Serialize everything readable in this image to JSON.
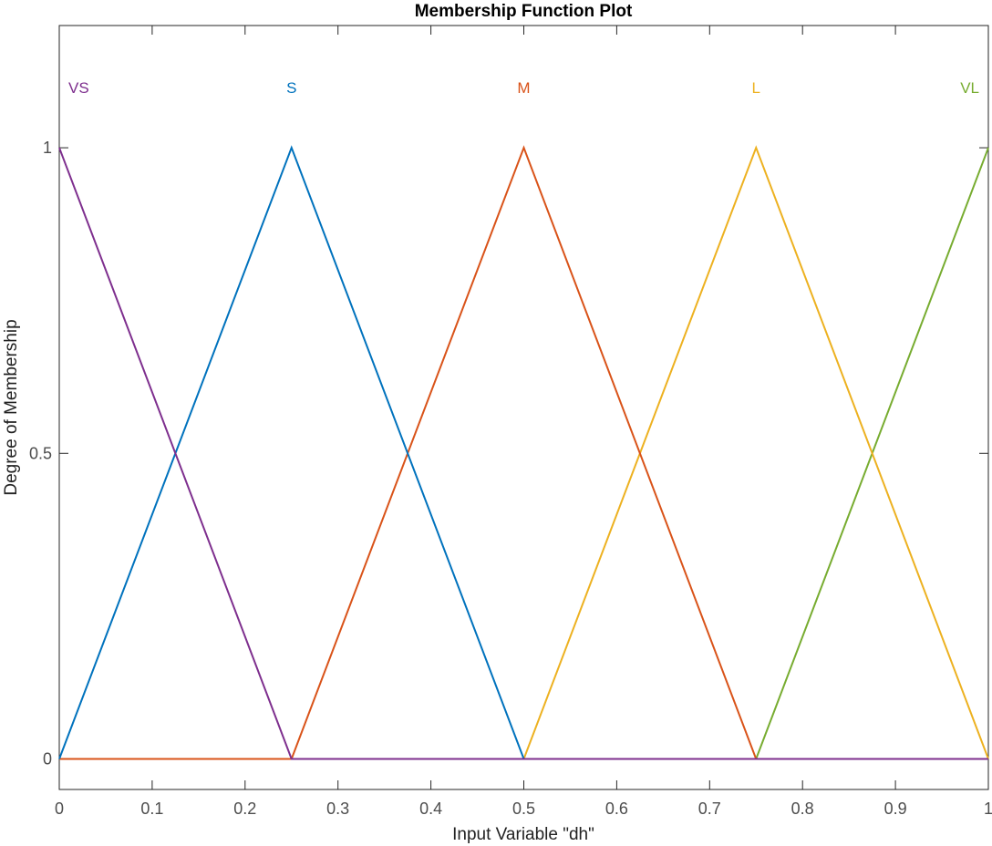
{
  "chart_data": {
    "type": "line",
    "title": "Membership Function Plot",
    "xlabel": "Input Variable \"dh\"",
    "ylabel": "Degree of Membership",
    "xlim": [
      0,
      1
    ],
    "ylim": [
      -0.05,
      1.2
    ],
    "xticks": [
      0,
      0.1,
      0.2,
      0.3,
      0.4,
      0.5,
      0.6,
      0.7,
      0.8,
      0.9,
      1
    ],
    "xtick_labels": [
      "0",
      "0.1",
      "0.2",
      "0.3",
      "0.4",
      "0.5",
      "0.6",
      "0.7",
      "0.8",
      "0.9",
      "1"
    ],
    "yticks": [
      0,
      0.5,
      1
    ],
    "ytick_labels": [
      "0",
      "0.5",
      "1"
    ],
    "grid": false,
    "series": [
      {
        "name": "VS",
        "color": "#7E2F8E",
        "x": [
          0,
          0.25,
          1
        ],
        "y": [
          1,
          0,
          0
        ]
      },
      {
        "name": "S",
        "color": "#0072BD",
        "x": [
          0,
          0.25,
          0.5,
          1
        ],
        "y": [
          0,
          1,
          0,
          0
        ]
      },
      {
        "name": "M",
        "color": "#D95319",
        "x": [
          0,
          0.25,
          0.5,
          0.75,
          1
        ],
        "y": [
          0,
          0,
          1,
          0,
          0
        ]
      },
      {
        "name": "L",
        "color": "#EDB120",
        "x": [
          0,
          0.5,
          0.75,
          1
        ],
        "y": [
          0,
          0,
          1,
          0
        ]
      },
      {
        "name": "VL",
        "color": "#77AC30",
        "x": [
          0,
          0.75,
          1
        ],
        "y": [
          0,
          0,
          1
        ]
      }
    ]
  }
}
